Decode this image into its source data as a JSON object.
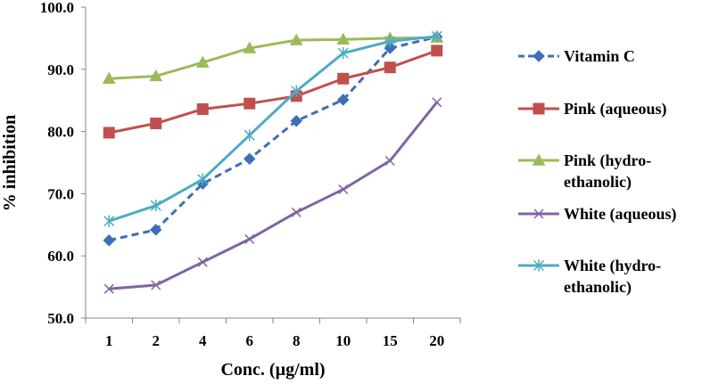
{
  "chart_data": {
    "type": "line",
    "title": "",
    "xlabel": "Conc. (µg/ml)",
    "ylabel": "% inhibition",
    "categories": [
      "1",
      "2",
      "4",
      "6",
      "8",
      "10",
      "15",
      "20"
    ],
    "ylim": [
      50,
      100
    ],
    "yticks": [
      "50.0",
      "60.0",
      "70.0",
      "80.0",
      "90.0",
      "100.0"
    ],
    "ytick_values": [
      50,
      60,
      70,
      80,
      90,
      100
    ],
    "grid": false,
    "legend_position": "right",
    "series": [
      {
        "name": "Vitamin C",
        "legend_lines": [
          "Vitamin C"
        ],
        "color": "#3e6fb6",
        "marker": "diamond",
        "dashed": true,
        "values": [
          62.5,
          64.2,
          71.6,
          75.6,
          81.7,
          85.1,
          93.4,
          95.2
        ]
      },
      {
        "name": "Pink (aqueous)",
        "legend_lines": [
          "Pink (aqueous)"
        ],
        "color": "#c0504d",
        "marker": "square",
        "dashed": false,
        "values": [
          79.8,
          81.3,
          83.6,
          84.5,
          85.7,
          88.5,
          90.3,
          93.0
        ]
      },
      {
        "name": "Pink (hydro-ethanolic)",
        "legend_lines": [
          "Pink (hydro-",
          "ethanolic)"
        ],
        "color": "#9bbb59",
        "marker": "triangle",
        "dashed": false,
        "values": [
          88.5,
          88.9,
          91.1,
          93.4,
          94.7,
          94.8,
          95.0,
          95.1
        ]
      },
      {
        "name": "White (aqueous)",
        "legend_lines": [
          "White (aqueous)"
        ],
        "color": "#8064a2",
        "marker": "x",
        "dashed": false,
        "values": [
          54.7,
          55.3,
          59.0,
          62.7,
          67.0,
          70.7,
          75.3,
          84.7
        ]
      },
      {
        "name": "White (hydro-ethanolic)",
        "legend_lines": [
          "White (hydro-",
          "ethanolic)"
        ],
        "color": "#4bacc6",
        "marker": "star",
        "dashed": false,
        "values": [
          65.6,
          68.1,
          72.3,
          79.4,
          86.5,
          92.6,
          94.5,
          95.3
        ]
      }
    ]
  }
}
